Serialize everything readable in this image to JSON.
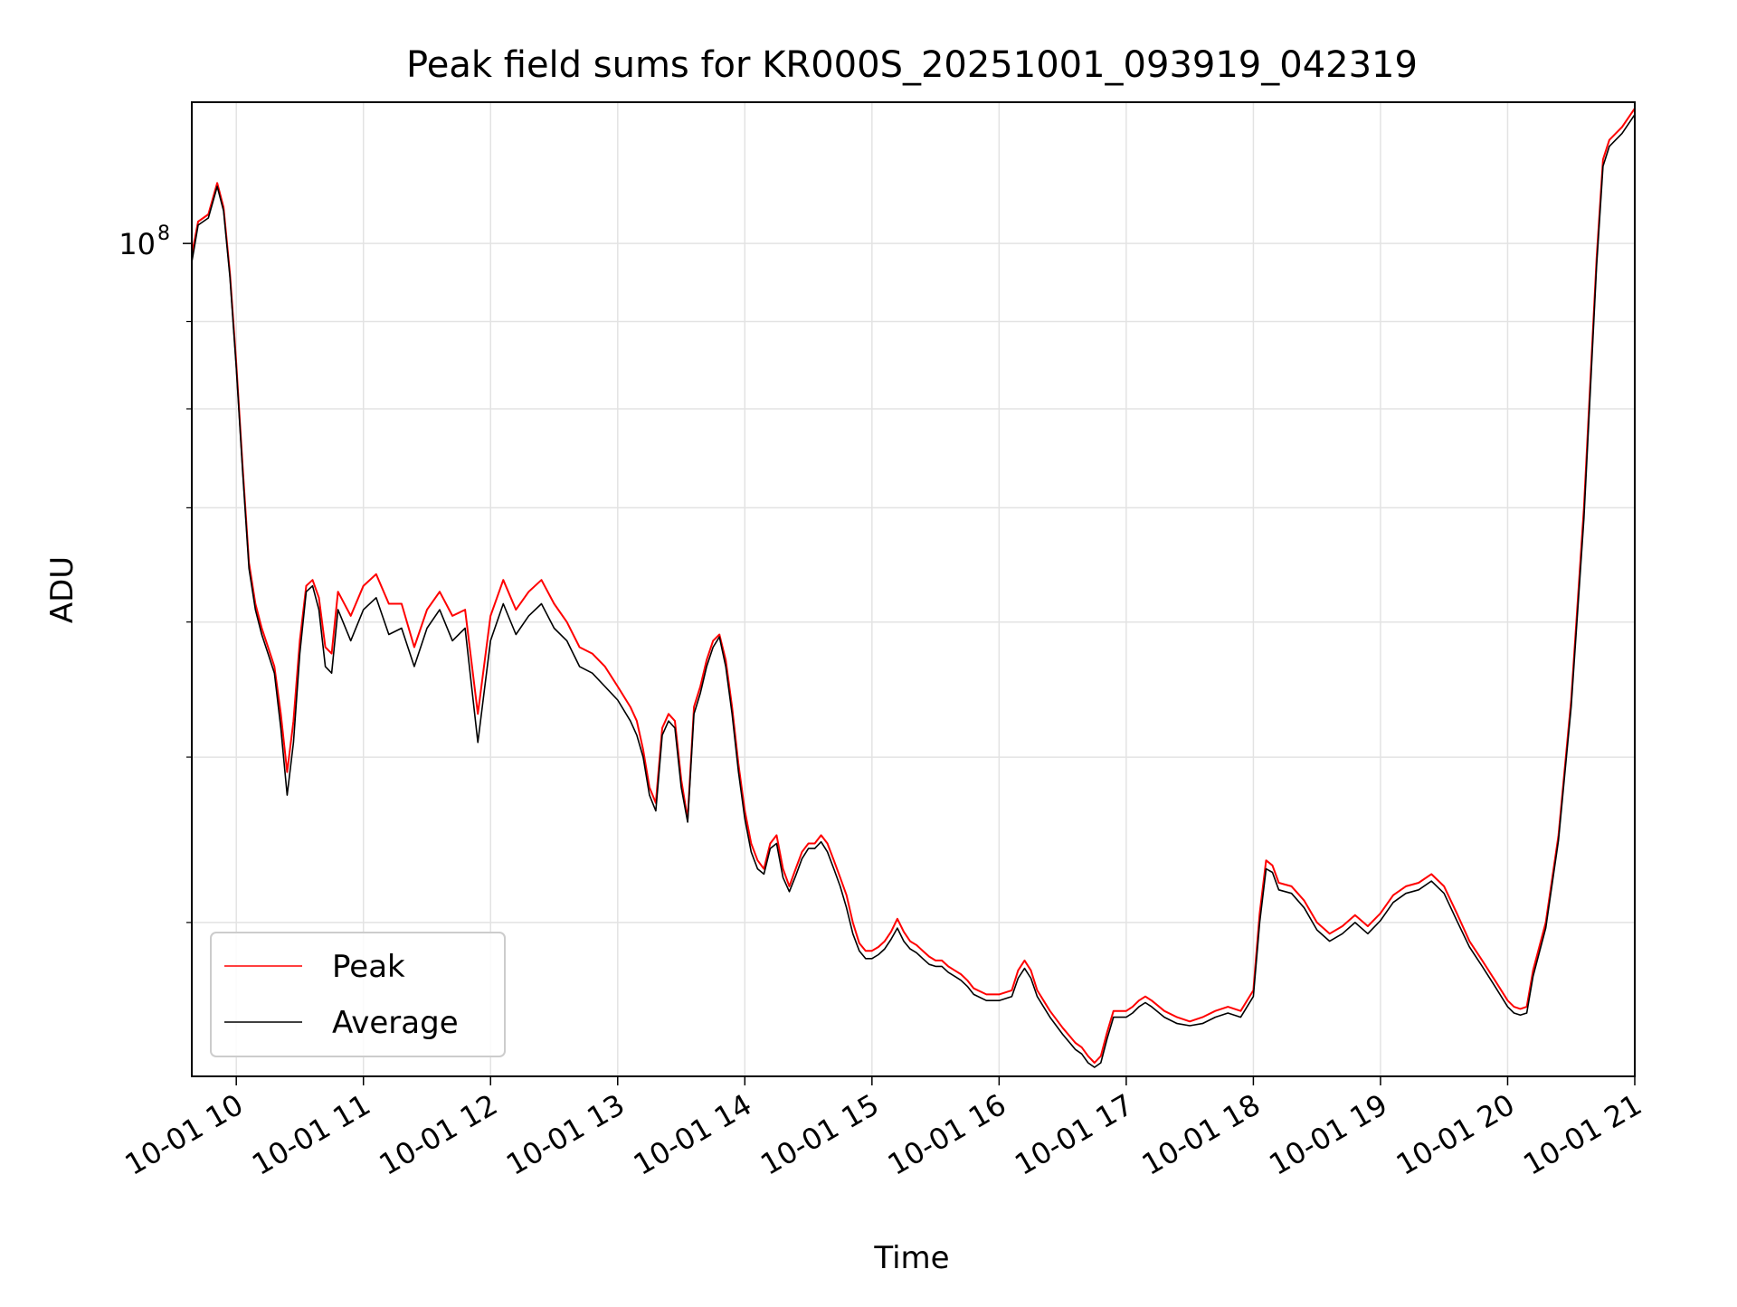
{
  "chart_data": {
    "type": "line",
    "title": "Peak field sums for KR000S_20251001_093919_042319",
    "xlabel": "Time",
    "ylabel": "ADU",
    "y_scale": "log",
    "grid": true,
    "legend_position": "lower-left",
    "x_range_hours": [
      9.65,
      21.0
    ],
    "ylim": [
      32500000,
      121000000
    ],
    "x_ticks": [
      {
        "value": 10,
        "label": "10-01 10"
      },
      {
        "value": 11,
        "label": "10-01 11"
      },
      {
        "value": 12,
        "label": "10-01 12"
      },
      {
        "value": 13,
        "label": "10-01 13"
      },
      {
        "value": 14,
        "label": "10-01 14"
      },
      {
        "value": 15,
        "label": "10-01 15"
      },
      {
        "value": 16,
        "label": "10-01 16"
      },
      {
        "value": 17,
        "label": "10-01 17"
      },
      {
        "value": 18,
        "label": "10-01 18"
      },
      {
        "value": 19,
        "label": "10-01 19"
      },
      {
        "value": 20,
        "label": "10-01 20"
      },
      {
        "value": 21,
        "label": "10-01 21"
      }
    ],
    "y_major_ticks": [
      {
        "value": 100000000,
        "base": "10",
        "exp": "8"
      }
    ],
    "y_minor_ticks": [
      40000000,
      50000000,
      60000000,
      70000000,
      80000000,
      90000000
    ],
    "series": [
      {
        "name": "Peak",
        "color": "#ff0000",
        "x": [
          9.65,
          9.7,
          9.78,
          9.85,
          9.9,
          9.95,
          10.0,
          10.05,
          10.1,
          10.15,
          10.2,
          10.25,
          10.3,
          10.35,
          10.4,
          10.45,
          10.5,
          10.55,
          10.6,
          10.65,
          10.7,
          10.75,
          10.8,
          10.9,
          11.0,
          11.1,
          11.2,
          11.3,
          11.4,
          11.5,
          11.6,
          11.7,
          11.8,
          11.9,
          12.0,
          12.1,
          12.2,
          12.3,
          12.4,
          12.5,
          12.6,
          12.7,
          12.8,
          12.9,
          13.0,
          13.1,
          13.15,
          13.2,
          13.25,
          13.3,
          13.35,
          13.4,
          13.45,
          13.5,
          13.55,
          13.6,
          13.65,
          13.7,
          13.75,
          13.8,
          13.85,
          13.9,
          13.95,
          14.0,
          14.05,
          14.1,
          14.15,
          14.2,
          14.25,
          14.3,
          14.35,
          14.4,
          14.45,
          14.5,
          14.55,
          14.6,
          14.65,
          14.7,
          14.75,
          14.8,
          14.85,
          14.9,
          14.95,
          15.0,
          15.05,
          15.1,
          15.15,
          15.2,
          15.25,
          15.3,
          15.35,
          15.4,
          15.45,
          15.5,
          15.55,
          15.6,
          15.65,
          15.7,
          15.75,
          15.8,
          15.9,
          16.0,
          16.1,
          16.15,
          16.2,
          16.25,
          16.3,
          16.35,
          16.4,
          16.5,
          16.6,
          16.65,
          16.7,
          16.75,
          16.8,
          16.85,
          16.9,
          16.95,
          17.0,
          17.05,
          17.1,
          17.15,
          17.2,
          17.3,
          17.4,
          17.5,
          17.6,
          17.7,
          17.8,
          17.9,
          18.0,
          18.05,
          18.1,
          18.15,
          18.2,
          18.3,
          18.4,
          18.5,
          18.6,
          18.7,
          18.8,
          18.9,
          19.0,
          19.1,
          19.2,
          19.3,
          19.4,
          19.5,
          19.6,
          19.7,
          19.8,
          19.9,
          20.0,
          20.05,
          20.1,
          20.15,
          20.2,
          20.3,
          20.4,
          20.5,
          20.6,
          20.7,
          20.75,
          20.8,
          20.9,
          21.0
        ],
        "values": [
          98500000,
          103000000,
          104000000,
          108500000,
          105000000,
          96000000,
          85000000,
          74000000,
          65000000,
          61500000,
          59500000,
          58000000,
          56500000,
          53000000,
          49000000,
          52500000,
          58500000,
          63000000,
          63500000,
          62000000,
          58000000,
          57500000,
          62500000,
          60500000,
          63000000,
          64000000,
          61500000,
          61500000,
          58000000,
          61000000,
          62500000,
          60500000,
          61000000,
          53000000,
          60500000,
          63500000,
          61000000,
          62500000,
          63500000,
          61500000,
          60000000,
          58000000,
          57500000,
          56500000,
          55000000,
          53500000,
          52500000,
          50500000,
          48000000,
          47000000,
          52000000,
          53000000,
          52500000,
          48500000,
          46000000,
          53500000,
          55000000,
          57000000,
          58500000,
          59000000,
          57000000,
          53500000,
          49500000,
          46500000,
          44500000,
          43500000,
          43000000,
          44500000,
          45000000,
          43000000,
          42000000,
          43000000,
          44000000,
          44500000,
          44500000,
          45000000,
          44500000,
          43500000,
          42500000,
          41500000,
          40000000,
          38900000,
          38500000,
          38500000,
          38700000,
          39000000,
          39500000,
          40200000,
          39500000,
          39000000,
          38800000,
          38500000,
          38200000,
          38000000,
          38000000,
          37700000,
          37500000,
          37300000,
          37000000,
          36600000,
          36300000,
          36300000,
          36500000,
          37500000,
          38000000,
          37500000,
          36500000,
          36000000,
          35500000,
          34700000,
          34000000,
          33800000,
          33400000,
          33100000,
          33400000,
          34500000,
          35500000,
          35500000,
          35500000,
          35700000,
          36000000,
          36200000,
          36000000,
          35500000,
          35200000,
          35000000,
          35200000,
          35500000,
          35700000,
          35500000,
          36500000,
          40500000,
          43500000,
          43200000,
          42200000,
          42000000,
          41200000,
          40000000,
          39400000,
          39800000,
          40400000,
          39800000,
          40500000,
          41500000,
          42000000,
          42200000,
          42700000,
          42000000,
          40500000,
          39000000,
          38000000,
          37000000,
          36000000,
          35700000,
          35600000,
          35700000,
          37500000,
          40000000,
          45000000,
          54000000,
          70000000,
          98000000,
          112000000,
          115000000,
          117000000,
          120000000
        ]
      },
      {
        "name": "Average",
        "color": "#000000",
        "x": [
          9.65,
          9.7,
          9.78,
          9.85,
          9.9,
          9.95,
          10.0,
          10.05,
          10.1,
          10.15,
          10.2,
          10.25,
          10.3,
          10.35,
          10.4,
          10.45,
          10.5,
          10.55,
          10.6,
          10.65,
          10.7,
          10.75,
          10.8,
          10.9,
          11.0,
          11.1,
          11.2,
          11.3,
          11.4,
          11.5,
          11.6,
          11.7,
          11.8,
          11.9,
          12.0,
          12.1,
          12.2,
          12.3,
          12.4,
          12.5,
          12.6,
          12.7,
          12.8,
          12.9,
          13.0,
          13.1,
          13.15,
          13.2,
          13.25,
          13.3,
          13.35,
          13.4,
          13.45,
          13.5,
          13.55,
          13.6,
          13.65,
          13.7,
          13.75,
          13.8,
          13.85,
          13.9,
          13.95,
          14.0,
          14.05,
          14.1,
          14.15,
          14.2,
          14.25,
          14.3,
          14.35,
          14.4,
          14.45,
          14.5,
          14.55,
          14.6,
          14.65,
          14.7,
          14.75,
          14.8,
          14.85,
          14.9,
          14.95,
          15.0,
          15.05,
          15.1,
          15.15,
          15.2,
          15.25,
          15.3,
          15.35,
          15.4,
          15.45,
          15.5,
          15.55,
          15.6,
          15.65,
          15.7,
          15.75,
          15.8,
          15.9,
          16.0,
          16.1,
          16.15,
          16.2,
          16.25,
          16.3,
          16.35,
          16.4,
          16.5,
          16.6,
          16.65,
          16.7,
          16.75,
          16.8,
          16.85,
          16.9,
          16.95,
          17.0,
          17.05,
          17.1,
          17.15,
          17.2,
          17.3,
          17.4,
          17.5,
          17.6,
          17.7,
          17.8,
          17.9,
          18.0,
          18.05,
          18.1,
          18.15,
          18.2,
          18.3,
          18.4,
          18.5,
          18.6,
          18.7,
          18.8,
          18.9,
          19.0,
          19.1,
          19.2,
          19.3,
          19.4,
          19.5,
          19.6,
          19.7,
          19.8,
          19.9,
          20.0,
          20.05,
          20.1,
          20.15,
          20.2,
          20.3,
          20.4,
          20.5,
          20.6,
          20.7,
          20.75,
          20.8,
          20.9,
          21.0
        ],
        "values": [
          97500000,
          102500000,
          103500000,
          108000000,
          104500000,
          95500000,
          84500000,
          73500000,
          64500000,
          61000000,
          59000000,
          57500000,
          56000000,
          52000000,
          47500000,
          51000000,
          57500000,
          62500000,
          63000000,
          61000000,
          56500000,
          56000000,
          61000000,
          58500000,
          61000000,
          62000000,
          59000000,
          59500000,
          56500000,
          59500000,
          61000000,
          58500000,
          59500000,
          51000000,
          58500000,
          61500000,
          59000000,
          60500000,
          61500000,
          59500000,
          58500000,
          56500000,
          56000000,
          55000000,
          54000000,
          52500000,
          51500000,
          50000000,
          47500000,
          46500000,
          51500000,
          52500000,
          52000000,
          48000000,
          45800000,
          53000000,
          54500000,
          56500000,
          58000000,
          58800000,
          56500000,
          53000000,
          49000000,
          46000000,
          44000000,
          43000000,
          42700000,
          44200000,
          44500000,
          42500000,
          41700000,
          42600000,
          43600000,
          44200000,
          44200000,
          44600000,
          44000000,
          43000000,
          42000000,
          40800000,
          39400000,
          38500000,
          38100000,
          38100000,
          38300000,
          38600000,
          39100000,
          39700000,
          39000000,
          38600000,
          38400000,
          38100000,
          37800000,
          37700000,
          37700000,
          37400000,
          37200000,
          37000000,
          36700000,
          36300000,
          36000000,
          36000000,
          36200000,
          37100000,
          37600000,
          37100000,
          36200000,
          35700000,
          35200000,
          34400000,
          33700000,
          33500000,
          33100000,
          32900000,
          33100000,
          34200000,
          35200000,
          35200000,
          35200000,
          35400000,
          35700000,
          35900000,
          35700000,
          35200000,
          34900000,
          34800000,
          34900000,
          35200000,
          35400000,
          35200000,
          36200000,
          40000000,
          43000000,
          42800000,
          41800000,
          41600000,
          40800000,
          39600000,
          39000000,
          39400000,
          40000000,
          39400000,
          40100000,
          41100000,
          41600000,
          41800000,
          42300000,
          41600000,
          40100000,
          38700000,
          37700000,
          36700000,
          35700000,
          35400000,
          35300000,
          35400000,
          37200000,
          39700000,
          44700000,
          53500000,
          69000000,
          97000000,
          111000000,
          114000000,
          116000000,
          119000000
        ]
      }
    ]
  }
}
